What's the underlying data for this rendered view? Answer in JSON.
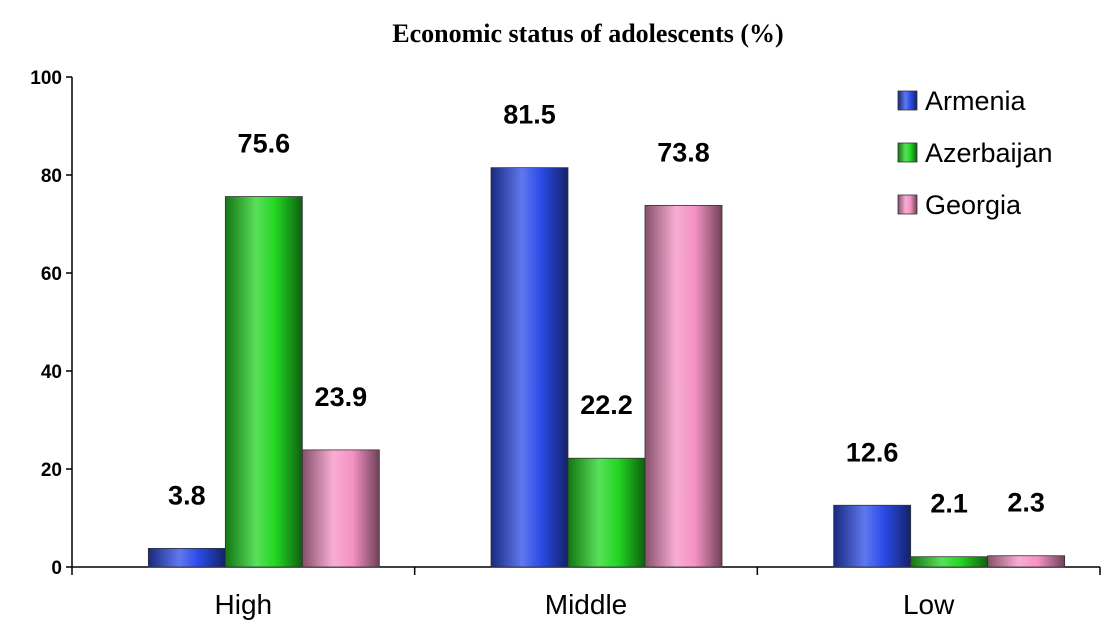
{
  "chart_data": {
    "type": "bar",
    "title": "Economic status of adolescents (%)",
    "xlabel": "",
    "ylabel": "",
    "categories": [
      "High",
      "Middle",
      "Low"
    ],
    "series": [
      {
        "name": "Armenia",
        "values": [
          3.8,
          81.5,
          12.6
        ],
        "color": "#2B4BE8"
      },
      {
        "name": "Azerbaijan",
        "values": [
          75.6,
          22.2,
          2.1
        ],
        "color": "#22D622"
      },
      {
        "name": "Georgia",
        "values": [
          23.9,
          73.8,
          2.3
        ],
        "color": "#F592C4"
      }
    ],
    "ylim": [
      0,
      100
    ],
    "yticks": [
      0,
      20,
      40,
      60,
      80,
      100
    ],
    "grid": false,
    "legend": "top-right",
    "data_labels": true
  }
}
